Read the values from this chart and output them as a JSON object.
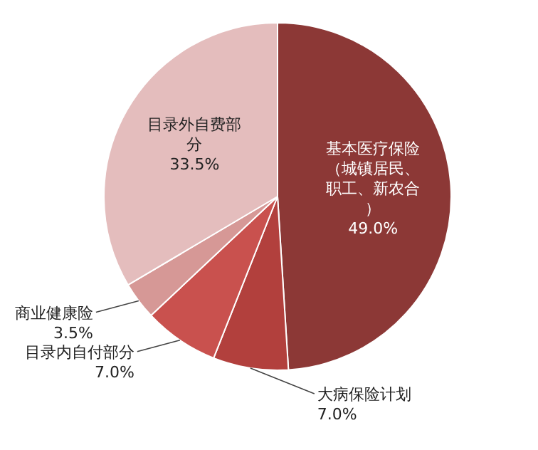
{
  "chart_data": {
    "type": "pie",
    "categories": [
      "基本医疗保险（城镇居民、职工、新农合）",
      "大病保险计划",
      "目录内自付部分",
      "商业健康险",
      "目录外自费部分"
    ],
    "values": [
      49.0,
      7.0,
      7.0,
      3.5,
      33.5
    ],
    "value_labels": [
      "49.0%",
      "7.0%",
      "7.0%",
      "3.5%",
      "33.5%"
    ],
    "colors": [
      "#8c3836",
      "#b2403d",
      "#c9514e",
      "#d69896",
      "#e4bdbd"
    ]
  }
}
